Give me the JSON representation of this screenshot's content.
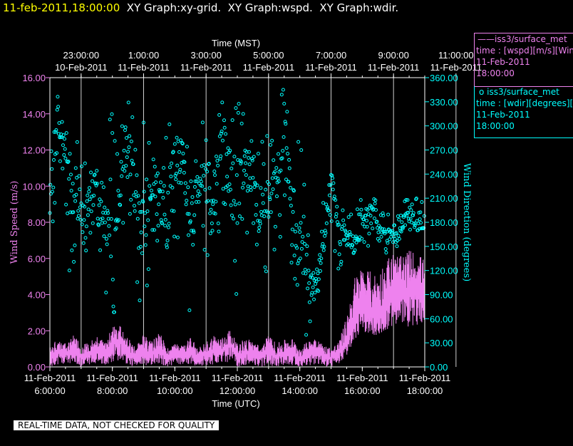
{
  "title": {
    "timestamp": "11-feb-2011,18:00:00",
    "text": "  XY Graph:xy-grid.  XY Graph:wspd.  XY Graph:wdir."
  },
  "legend": [
    {
      "symbol": "——",
      "name": "iss3/surface_met",
      "line2": "time : [wspd][m/s][Wind",
      "line3": "11-Feb-2011",
      "line4": "18:00:00",
      "color": "#ee82ee"
    },
    {
      "symbol": "o",
      "name": "iss3/surface_met",
      "line2": "time : [wdir][degrees][V",
      "line3": "11-Feb-2011",
      "line4": "18:00:00",
      "color": "#00ffff"
    }
  ],
  "badge": "REAL-TIME DATA, NOT CHECKED FOR QUALITY",
  "chart_data": {
    "type": "line",
    "title": "",
    "top_axis": {
      "label": "Time (MST)",
      "ticks": [
        {
          "time": "23:00:00",
          "date": "10-Feb-2011"
        },
        {
          "time": "1:00:00",
          "date": "11-Feb-2011"
        },
        {
          "time": "3:00:00",
          "date": "11-Feb-2011"
        },
        {
          "time": "5:00:00",
          "date": "11-Feb-2011"
        },
        {
          "time": "7:00:00",
          "date": "11-Feb-2011"
        },
        {
          "time": "9:00:00",
          "date": "11-Feb-2011"
        },
        {
          "time": "11:00:00",
          "date": "11-Feb-2011"
        }
      ]
    },
    "bottom_axis": {
      "label": "Time (UTC)",
      "ticks": [
        {
          "date": "11-Feb-2011",
          "time": "6:00:00"
        },
        {
          "date": "11-Feb-2011",
          "time": "8:00:00"
        },
        {
          "date": "11-Feb-2011",
          "time": "10:00:00"
        },
        {
          "date": "11-Feb-2011",
          "time": "12:00:00"
        },
        {
          "date": "11-Feb-2011",
          "time": "14:00:00"
        },
        {
          "date": "11-Feb-2011",
          "time": "16:00:00"
        },
        {
          "date": "11-Feb-2011",
          "time": "18:00:00"
        }
      ]
    },
    "xlim_utc_hours": [
      6,
      18
    ],
    "left_axis": {
      "label": "Wind Speed (m/s)",
      "ylim": [
        0,
        16
      ],
      "ticks": [
        "0.00",
        "2.00",
        "4.00",
        "6.00",
        "8.00",
        "10.00",
        "12.00",
        "14.00",
        "16.00"
      ],
      "color": "#ee82ee"
    },
    "right_axis": {
      "label": "Wind Direction (degrees)",
      "ylim": [
        0,
        360
      ],
      "ticks": [
        "0.00",
        "30.00",
        "60.00",
        "90.00",
        "120.00",
        "150.00",
        "180.00",
        "210.00",
        "240.00",
        "270.00",
        "300.00",
        "330.00",
        "360.00"
      ],
      "color": "#00ffff"
    },
    "grid": "vertical lines at top-axis ticks",
    "series": [
      {
        "name": "wspd",
        "style": "line",
        "axis": "left",
        "color": "#ee82ee",
        "x_utc_hours": [
          6.0,
          6.25,
          6.5,
          6.75,
          7.0,
          7.25,
          7.5,
          7.75,
          8.0,
          8.25,
          8.5,
          8.75,
          9.0,
          9.25,
          9.5,
          9.75,
          10.0,
          10.25,
          10.5,
          10.75,
          11.0,
          11.25,
          11.5,
          11.75,
          12.0,
          12.25,
          12.5,
          12.75,
          13.0,
          13.25,
          13.5,
          13.75,
          14.0,
          14.25,
          14.5,
          14.75,
          15.0,
          15.25,
          15.5,
          15.75,
          16.0,
          16.25,
          16.5,
          16.75,
          17.0,
          17.25,
          17.5,
          17.75,
          18.0
        ],
        "y": [
          0.5,
          0.8,
          0.7,
          1.0,
          0.6,
          0.8,
          0.9,
          0.7,
          1.3,
          1.6,
          0.8,
          0.5,
          0.9,
          0.7,
          1.0,
          0.5,
          0.7,
          0.6,
          0.8,
          0.5,
          0.7,
          0.9,
          0.8,
          1.3,
          0.6,
          0.8,
          0.7,
          0.5,
          0.9,
          0.6,
          0.7,
          0.8,
          0.5,
          0.7,
          0.9,
          0.6,
          0.5,
          0.7,
          1.5,
          2.6,
          3.4,
          3.1,
          2.9,
          3.5,
          3.9,
          3.8,
          4.3,
          4.4,
          4.2
        ],
        "y_min": [
          0.0,
          0.1,
          0.1,
          0.2,
          0.0,
          0.1,
          0.2,
          0.1,
          0.2,
          0.4,
          0.1,
          0.0,
          0.1,
          0.1,
          0.2,
          0.0,
          0.1,
          0.1,
          0.1,
          0.0,
          0.1,
          0.1,
          0.1,
          0.3,
          0.0,
          0.1,
          0.1,
          0.0,
          0.1,
          0.0,
          0.1,
          0.1,
          0.0,
          0.1,
          0.1,
          0.0,
          0.0,
          0.1,
          0.6,
          1.5,
          2.0,
          1.8,
          1.6,
          2.0,
          2.2,
          2.3,
          2.2,
          2.3,
          2.1
        ],
        "y_max": [
          1.2,
          1.5,
          1.3,
          1.9,
          1.2,
          1.4,
          1.7,
          1.4,
          2.2,
          2.3,
          1.6,
          1.1,
          1.8,
          1.4,
          2.0,
          1.1,
          1.3,
          1.2,
          1.6,
          1.1,
          1.4,
          1.8,
          1.6,
          2.1,
          1.3,
          1.6,
          1.5,
          1.1,
          1.8,
          1.3,
          1.5,
          1.6,
          1.1,
          1.4,
          1.8,
          1.2,
          1.1,
          1.4,
          2.8,
          5.0,
          5.6,
          5.3,
          5.1,
          6.0,
          6.4,
          6.1,
          6.5,
          6.3,
          6.0
        ]
      },
      {
        "name": "wdir",
        "style": "markers",
        "axis": "right",
        "color": "#00ffff",
        "x_utc_hours": [
          6.0,
          6.25,
          6.5,
          6.75,
          7.0,
          7.25,
          7.5,
          7.75,
          8.0,
          8.25,
          8.5,
          8.75,
          9.0,
          9.25,
          9.5,
          9.75,
          10.0,
          10.25,
          10.5,
          10.75,
          11.0,
          11.25,
          11.5,
          11.75,
          12.0,
          12.25,
          12.5,
          12.75,
          13.0,
          13.25,
          13.5,
          13.75,
          14.0,
          14.25,
          14.5,
          14.75,
          15.0,
          15.25,
          15.5,
          15.75,
          16.0,
          16.25,
          16.5,
          16.75,
          17.0,
          17.25,
          17.5,
          17.75,
          18.0
        ],
        "y": [
          200,
          300,
          280,
          220,
          190,
          200,
          240,
          180,
          150,
          220,
          290,
          200,
          170,
          240,
          210,
          190,
          250,
          270,
          160,
          230,
          250,
          200,
          300,
          240,
          210,
          260,
          220,
          190,
          200,
          250,
          290,
          180,
          170,
          130,
          90,
          160,
          230,
          170,
          160,
          150,
          180,
          190,
          170,
          160,
          165,
          170,
          190,
          180,
          180
        ],
        "y_min": [
          140,
          230,
          180,
          60,
          110,
          140,
          180,
          90,
          40,
          140,
          210,
          60,
          40,
          150,
          130,
          60,
          130,
          200,
          50,
          140,
          140,
          80,
          210,
          110,
          60,
          180,
          80,
          50,
          100,
          120,
          200,
          60,
          40,
          30,
          60,
          80,
          150,
          120,
          140,
          120,
          150,
          150,
          140,
          140,
          140,
          145,
          155,
          150,
          150
        ],
        "y_max": [
          260,
          360,
          320,
          300,
          270,
          260,
          300,
          270,
          330,
          300,
          340,
          300,
          320,
          300,
          280,
          300,
          320,
          330,
          270,
          300,
          320,
          330,
          340,
          330,
          360,
          320,
          300,
          280,
          290,
          320,
          350,
          300,
          300,
          210,
          180,
          220,
          260,
          200,
          190,
          190,
          215,
          220,
          210,
          200,
          205,
          210,
          215,
          210,
          205
        ]
      }
    ]
  }
}
